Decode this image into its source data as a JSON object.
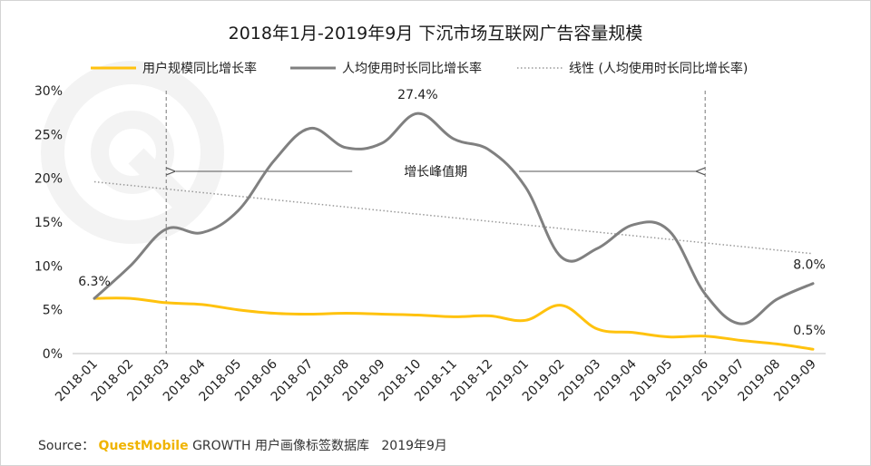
{
  "chart_data": {
    "type": "line",
    "title": "2018年1月-2019年9月 下沉市场互联网广告容量规模",
    "xlabel": "",
    "ylabel": "",
    "categories": [
      "2018-01",
      "2018-02",
      "2018-03",
      "2018-04",
      "2018-05",
      "2018-06",
      "2018-07",
      "2018-08",
      "2018-09",
      "2018-10",
      "2018-11",
      "2018-12",
      "2019-01",
      "2019-02",
      "2019-03",
      "2019-04",
      "2019-05",
      "2019-06",
      "2019-07",
      "2019-08",
      "2019-09"
    ],
    "y_ticks": [
      "0%",
      "5%",
      "10%",
      "15%",
      "20%",
      "25%",
      "30%"
    ],
    "ylim": [
      0,
      30
    ],
    "grid": false,
    "legend_position": "top",
    "series": [
      {
        "name": "用户规模同比增长率",
        "color": "#FFC20E",
        "values": [
          6.3,
          6.3,
          5.8,
          5.6,
          5.0,
          4.6,
          4.5,
          4.6,
          4.5,
          4.4,
          4.2,
          4.3,
          3.8,
          5.5,
          2.8,
          2.4,
          1.9,
          2.0,
          1.5,
          1.1,
          0.5
        ]
      },
      {
        "name": "人均使用时长同比增长率",
        "color": "#808080",
        "values": [
          6.3,
          10.0,
          14.2,
          13.8,
          16.3,
          22.0,
          25.7,
          23.5,
          24.0,
          27.4,
          24.5,
          23.2,
          19.0,
          11.0,
          12.0,
          14.7,
          14.0,
          6.8,
          3.4,
          6.2,
          8.0
        ]
      }
    ],
    "trendline": {
      "name": "线性 (人均使用时长同比增长率)",
      "color": "#999999",
      "start": 19.6,
      "end": 11.4
    },
    "data_labels": [
      {
        "series": 1,
        "index": 0,
        "text": "6.3%"
      },
      {
        "series": 1,
        "index": 9,
        "text": "27.4%"
      },
      {
        "series": 1,
        "index": 20,
        "text": "8.0%"
      },
      {
        "series": 0,
        "index": 20,
        "text": "0.5%"
      }
    ],
    "annotation": {
      "text": "增长峰值期",
      "from_index": 2,
      "to_index": 17
    }
  },
  "source": {
    "prefix": "Source：",
    "brand": "QuestMobile",
    "product": "GROWTH 用户画像标签数据库",
    "date": "2019年9月"
  }
}
